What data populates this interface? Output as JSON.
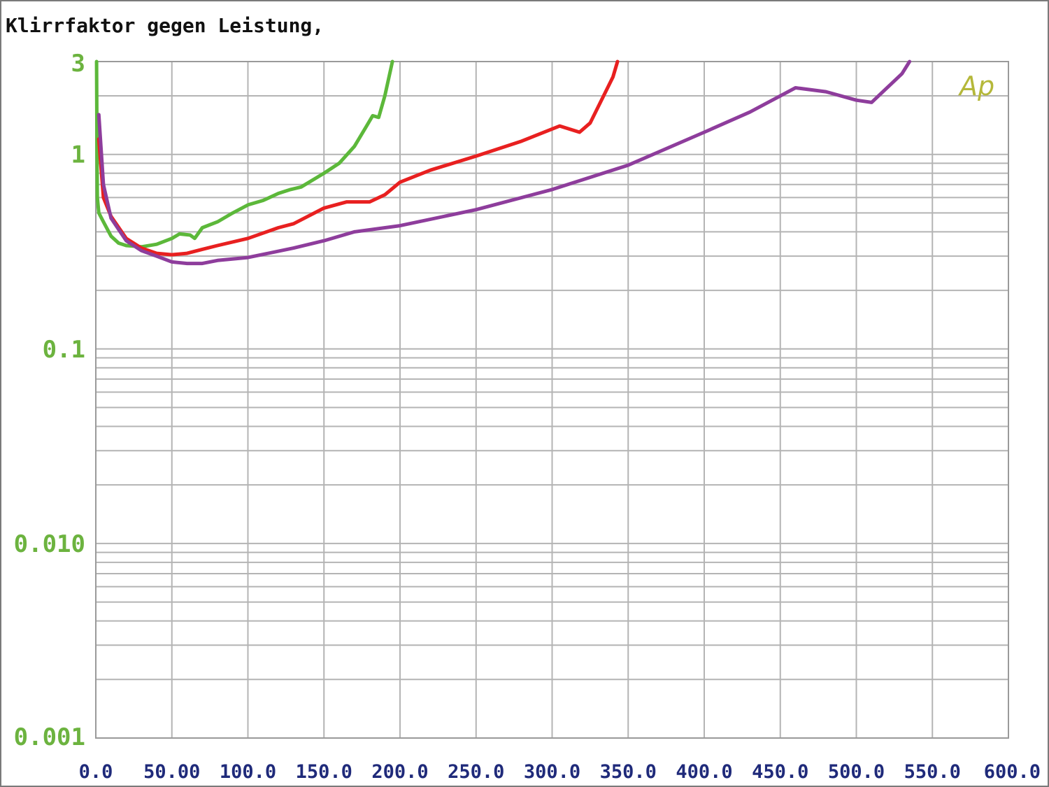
{
  "chart_data": {
    "type": "line",
    "title": "Klirrfaktor gegen Leistung,",
    "xlabel": "",
    "ylabel": "",
    "xlim": [
      0,
      600
    ],
    "ylim": [
      0.001,
      3
    ],
    "y_scale": "log",
    "grid": true,
    "x_ticks": [
      "0.0",
      "50.00",
      "100.0",
      "150.0",
      "200.0",
      "250.0",
      "300.0",
      "350.0",
      "400.0",
      "450.0",
      "500.0",
      "550.0",
      "600.0"
    ],
    "y_ticks": [
      {
        "value": 3,
        "label": "3"
      },
      {
        "value": 1,
        "label": "1"
      },
      {
        "value": 0.1,
        "label": "0.1"
      },
      {
        "value": 0.01,
        "label": "0.010"
      },
      {
        "value": 0.001,
        "label": "0.001"
      }
    ],
    "watermark": "Ap",
    "colors": {
      "axis_labels_y": "#6cb33f",
      "axis_labels_x": "#1f2a7a",
      "grid": "#b4b4b4",
      "watermark": "#b5b83a"
    },
    "series": [
      {
        "color": "#5cb83a",
        "points": [
          [
            0.5,
            3.0
          ],
          [
            0.8,
            1.0
          ],
          [
            1.0,
            0.6
          ],
          [
            2,
            0.5
          ],
          [
            5,
            0.45
          ],
          [
            10,
            0.38
          ],
          [
            15,
            0.35
          ],
          [
            20,
            0.34
          ],
          [
            30,
            0.335
          ],
          [
            40,
            0.345
          ],
          [
            50,
            0.37
          ],
          [
            55,
            0.39
          ],
          [
            62,
            0.385
          ],
          [
            65,
            0.37
          ],
          [
            70,
            0.42
          ],
          [
            80,
            0.45
          ],
          [
            90,
            0.5
          ],
          [
            100,
            0.55
          ],
          [
            110,
            0.58
          ],
          [
            120,
            0.63
          ],
          [
            128,
            0.66
          ],
          [
            135,
            0.68
          ],
          [
            150,
            0.8
          ],
          [
            160,
            0.9
          ],
          [
            170,
            1.1
          ],
          [
            178,
            1.4
          ],
          [
            182,
            1.58
          ],
          [
            186,
            1.55
          ],
          [
            190,
            2.0
          ],
          [
            195,
            3.0
          ]
        ]
      },
      {
        "color": "#e82020",
        "points": [
          [
            2,
            1.2
          ],
          [
            5,
            0.6
          ],
          [
            10,
            0.48
          ],
          [
            20,
            0.37
          ],
          [
            30,
            0.33
          ],
          [
            40,
            0.31
          ],
          [
            50,
            0.305
          ],
          [
            60,
            0.31
          ],
          [
            70,
            0.325
          ],
          [
            80,
            0.34
          ],
          [
            100,
            0.37
          ],
          [
            120,
            0.42
          ],
          [
            130,
            0.44
          ],
          [
            150,
            0.53
          ],
          [
            165,
            0.57
          ],
          [
            180,
            0.57
          ],
          [
            190,
            0.62
          ],
          [
            200,
            0.72
          ],
          [
            220,
            0.83
          ],
          [
            250,
            0.98
          ],
          [
            280,
            1.17
          ],
          [
            305,
            1.4
          ],
          [
            318,
            1.3
          ],
          [
            325,
            1.45
          ],
          [
            340,
            2.5
          ],
          [
            343,
            3.0
          ]
        ]
      },
      {
        "color": "#8e3d9c",
        "points": [
          [
            2,
            1.6
          ],
          [
            5,
            0.7
          ],
          [
            10,
            0.47
          ],
          [
            20,
            0.36
          ],
          [
            30,
            0.32
          ],
          [
            40,
            0.3
          ],
          [
            50,
            0.28
          ],
          [
            60,
            0.275
          ],
          [
            70,
            0.275
          ],
          [
            80,
            0.285
          ],
          [
            100,
            0.295
          ],
          [
            130,
            0.33
          ],
          [
            150,
            0.36
          ],
          [
            170,
            0.4
          ],
          [
            200,
            0.43
          ],
          [
            250,
            0.52
          ],
          [
            300,
            0.66
          ],
          [
            350,
            0.88
          ],
          [
            400,
            1.3
          ],
          [
            430,
            1.65
          ],
          [
            460,
            2.2
          ],
          [
            480,
            2.1
          ],
          [
            500,
            1.9
          ],
          [
            510,
            1.85
          ],
          [
            530,
            2.6
          ],
          [
            535,
            3.0
          ]
        ]
      }
    ]
  }
}
